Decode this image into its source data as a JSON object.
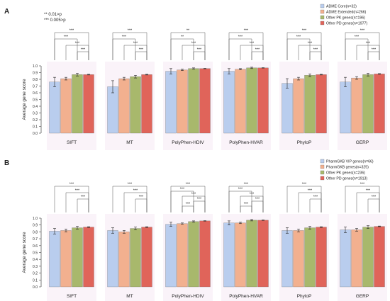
{
  "panel_a_label": "A",
  "panel_b_label": "B",
  "significance_notes": [
    "** 0.01>p",
    "*** 0.005>p"
  ],
  "chart_data": [
    {
      "type": "bar",
      "panel": "A",
      "ylabel": "Average gene score",
      "ylim": [
        0,
        1.0
      ],
      "yticks": [
        "0.0",
        "0.1",
        "0.2",
        "0.3",
        "0.4",
        "0.5",
        "0.6",
        "0.7",
        "0.8",
        "0.9",
        "1.0"
      ],
      "grid": false,
      "legend_position": "top-right",
      "categories": [
        "SIFT",
        "MT",
        "PolyPhen-HDIV",
        "PolyPhen-HVAR",
        "PhyloP",
        "GERP"
      ],
      "series": [
        {
          "name": "ADME Core(n=32)",
          "color": "#b9cdee",
          "values": [
            0.76,
            0.69,
            0.92,
            0.92,
            0.74,
            0.76
          ],
          "errors": [
            0.07,
            0.09,
            0.04,
            0.04,
            0.07,
            0.07
          ]
        },
        {
          "name": "ADME Extended(n=266)",
          "color": "#f2b08f",
          "values": [
            0.81,
            0.81,
            0.94,
            0.95,
            0.81,
            0.82
          ],
          "errors": [
            0.02,
            0.02,
            0.01,
            0.01,
            0.02,
            0.02
          ]
        },
        {
          "name": "Other PK genes(n=196)",
          "color": "#a8b86c",
          "values": [
            0.87,
            0.84,
            0.96,
            0.97,
            0.86,
            0.87
          ],
          "errors": [
            0.02,
            0.02,
            0.01,
            0.01,
            0.02,
            0.02
          ]
        },
        {
          "name": "Other PD genes(n=1977)",
          "color": "#e0645a",
          "values": [
            0.87,
            0.87,
            0.96,
            0.97,
            0.87,
            0.88
          ],
          "errors": [
            0.005,
            0.005,
            0.003,
            0.003,
            0.005,
            0.005
          ]
        }
      ],
      "significance": [
        [
          "***",
          "***",
          "***",
          "***"
        ],
        [
          "***",
          "***",
          "***",
          "***"
        ],
        [
          "**",
          "**",
          "***",
          "***"
        ],
        [
          "***",
          "***",
          "***",
          "***"
        ],
        [
          "***",
          "***",
          "***",
          "***"
        ],
        [
          "***",
          "***",
          "***",
          "***"
        ]
      ]
    },
    {
      "type": "bar",
      "panel": "B",
      "ylabel": "Average gene score",
      "ylim": [
        0,
        1.0
      ],
      "yticks": [
        "0.0",
        "0.1",
        "0.2",
        "0.3",
        "0.4",
        "0.5",
        "0.6",
        "0.7",
        "0.8",
        "0.9",
        "1.0"
      ],
      "grid": false,
      "legend_position": "top-right",
      "categories": [
        "SIFT",
        "MT",
        "PolyPhen-HDIV",
        "PolyPhen-HVAR",
        "PhyloP",
        "GERP"
      ],
      "series": [
        {
          "name": "PharmGKB VIP genes(n=66)",
          "color": "#b9cdee",
          "values": [
            0.81,
            0.82,
            0.91,
            0.93,
            0.82,
            0.83
          ],
          "errors": [
            0.04,
            0.04,
            0.03,
            0.03,
            0.04,
            0.04
          ]
        },
        {
          "name": "PharmGKB genes(n=325)",
          "color": "#f2b08f",
          "values": [
            0.82,
            0.8,
            0.92,
            0.93,
            0.82,
            0.83
          ],
          "errors": [
            0.02,
            0.02,
            0.01,
            0.01,
            0.02,
            0.02
          ]
        },
        {
          "name": "Other PK genes(n=236)",
          "color": "#a8b86c",
          "values": [
            0.86,
            0.85,
            0.95,
            0.97,
            0.86,
            0.87
          ],
          "errors": [
            0.02,
            0.02,
            0.01,
            0.01,
            0.02,
            0.02
          ]
        },
        {
          "name": "Other PD genes(n=1913)",
          "color": "#e0645a",
          "values": [
            0.87,
            0.87,
            0.96,
            0.97,
            0.87,
            0.88
          ],
          "errors": [
            0.005,
            0.005,
            0.003,
            0.003,
            0.005,
            0.005
          ]
        }
      ],
      "significance": [
        [
          "***",
          "***",
          "***"
        ],
        [
          "***",
          "***",
          "***"
        ],
        [
          "***",
          "***",
          "***",
          "***",
          "***"
        ],
        [
          "***",
          "***",
          "***",
          "***",
          "***"
        ],
        [
          "***",
          "***",
          "***"
        ],
        [
          "***",
          "***",
          "***"
        ]
      ]
    }
  ]
}
